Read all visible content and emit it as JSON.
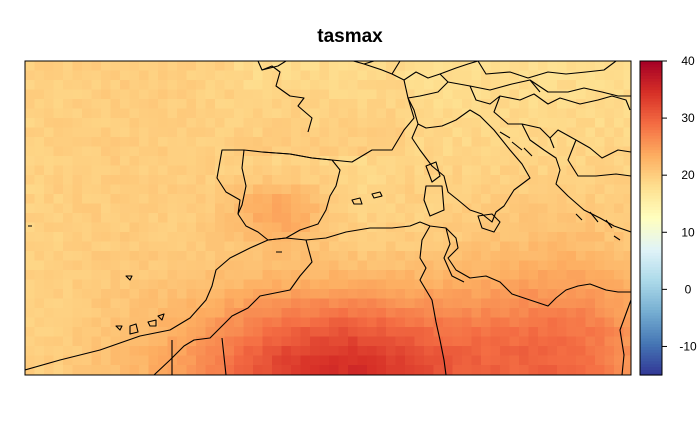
{
  "title": "tasmax",
  "colorbar": {
    "min": -15,
    "max": 40,
    "ticks": [
      -10,
      0,
      10,
      20,
      30,
      40
    ],
    "tick_labels": [
      "-10",
      "0",
      "10",
      "20",
      "30",
      "40"
    ],
    "palette": [
      "#313695",
      "#4575b4",
      "#74add1",
      "#abd9e9",
      "#e0f3f8",
      "#ffffbf",
      "#fee090",
      "#fdae61",
      "#f46d43",
      "#d73027",
      "#a50026"
    ]
  },
  "map": {
    "region": "Western Mediterranean / North Africa",
    "variable": "tasmax",
    "value_range": [
      18,
      36
    ],
    "features": [
      "Iberian Peninsula",
      "France",
      "Italy",
      "Balkans",
      "Corsica",
      "Sardinia",
      "Morocco",
      "Algeria",
      "Tunisia",
      "Libya"
    ]
  }
}
